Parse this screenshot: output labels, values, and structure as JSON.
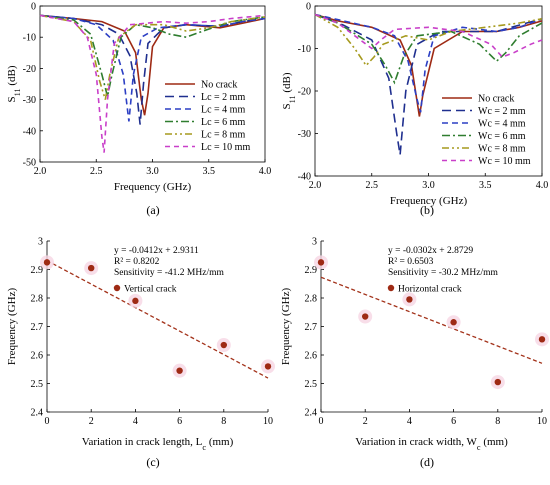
{
  "chart_data": [
    {
      "panel": "(a)",
      "type": "line",
      "xlabel": "Frequency (GHz)",
      "ylabel": "S11 (dB)",
      "ylabel_main": "S",
      "ylabel_sub": "11",
      "ylabel_unit": " (dB)",
      "xlim": [
        2.0,
        4.0
      ],
      "ylim": [
        -50,
        0
      ],
      "xticks": [
        "2.0",
        "2.5",
        "3.0",
        "3.5",
        "4.0"
      ],
      "yticks": [
        "0",
        "-10",
        "-20",
        "-30",
        "-40",
        "-50"
      ],
      "legend_position": "bottom-right",
      "series": [
        {
          "name": "No crack",
          "color": "#9e2a14",
          "dash": "solid",
          "points": [
            [
              2.0,
              -3
            ],
            [
              2.3,
              -4
            ],
            [
              2.55,
              -5
            ],
            [
              2.75,
              -8
            ],
            [
              2.85,
              -15
            ],
            [
              2.9,
              -30
            ],
            [
              2.93,
              -35
            ],
            [
              2.96,
              -28
            ],
            [
              3.0,
              -13
            ],
            [
              3.1,
              -7
            ],
            [
              3.3,
              -6
            ],
            [
              3.6,
              -7
            ],
            [
              3.8,
              -5.5
            ],
            [
              4.0,
              -4
            ]
          ]
        },
        {
          "name": "Lc = 2 mm",
          "color": "#1f2f8f",
          "dash": "9 5",
          "points": [
            [
              2.0,
              -3
            ],
            [
              2.3,
              -4
            ],
            [
              2.55,
              -6
            ],
            [
              2.7,
              -9
            ],
            [
              2.8,
              -16
            ],
            [
              2.86,
              -28
            ],
            [
              2.89,
              -38
            ],
            [
              2.92,
              -25
            ],
            [
              2.96,
              -12
            ],
            [
              3.1,
              -7
            ],
            [
              3.3,
              -6
            ],
            [
              3.6,
              -6.5
            ],
            [
              3.8,
              -5
            ],
            [
              4.0,
              -4
            ]
          ]
        },
        {
          "name": "Lc = 4 mm",
          "color": "#2c3fc4",
          "dash": "6 4",
          "points": [
            [
              2.0,
              -3
            ],
            [
              2.3,
              -4
            ],
            [
              2.5,
              -6
            ],
            [
              2.65,
              -11
            ],
            [
              2.74,
              -22
            ],
            [
              2.79,
              -37
            ],
            [
              2.83,
              -22
            ],
            [
              2.9,
              -10
            ],
            [
              3.05,
              -7
            ],
            [
              3.3,
              -6
            ],
            [
              3.6,
              -6.5
            ],
            [
              3.8,
              -5
            ],
            [
              4.0,
              -4
            ]
          ]
        },
        {
          "name": "Lc = 6 mm",
          "color": "#2f7d2f",
          "dash": "8 3 2 3",
          "points": [
            [
              2.0,
              -3
            ],
            [
              2.3,
              -4.5
            ],
            [
              2.45,
              -9
            ],
            [
              2.55,
              -22
            ],
            [
              2.6,
              -29
            ],
            [
              2.64,
              -22
            ],
            [
              2.72,
              -10
            ],
            [
              2.85,
              -6
            ],
            [
              3.0,
              -7
            ],
            [
              3.15,
              -9
            ],
            [
              3.3,
              -10
            ],
            [
              3.45,
              -8
            ],
            [
              3.7,
              -5
            ],
            [
              4.0,
              -3.5
            ]
          ]
        },
        {
          "name": "Lc = 8 mm",
          "color": "#a69a1e",
          "dash": "7 3 2 3 2 3",
          "points": [
            [
              2.0,
              -3
            ],
            [
              2.3,
              -5
            ],
            [
              2.45,
              -11
            ],
            [
              2.53,
              -24
            ],
            [
              2.58,
              -30
            ],
            [
              2.62,
              -22
            ],
            [
              2.7,
              -10
            ],
            [
              2.85,
              -6
            ],
            [
              3.1,
              -6
            ],
            [
              3.3,
              -8
            ],
            [
              3.5,
              -7
            ],
            [
              3.7,
              -5
            ],
            [
              4.0,
              -3.5
            ]
          ]
        },
        {
          "name": "Lc = 10 mm",
          "color": "#c93fc9",
          "dash": "5 4",
          "points": [
            [
              2.0,
              -3
            ],
            [
              2.3,
              -5
            ],
            [
              2.42,
              -10
            ],
            [
              2.5,
              -22
            ],
            [
              2.55,
              -42
            ],
            [
              2.57,
              -47
            ],
            [
              2.6,
              -30
            ],
            [
              2.66,
              -12
            ],
            [
              2.8,
              -6
            ],
            [
              3.1,
              -5
            ],
            [
              3.3,
              -5.5
            ],
            [
              3.5,
              -5
            ],
            [
              3.7,
              -4
            ],
            [
              4.0,
              -3
            ]
          ]
        }
      ]
    },
    {
      "panel": "(b)",
      "type": "line",
      "xlabel": "Frequency (GHz)",
      "ylabel": "S11 (dB)",
      "ylabel_main": "S",
      "ylabel_sub": "11",
      "ylabel_unit": " (dB)",
      "xlim": [
        2.0,
        4.0
      ],
      "ylim": [
        -40,
        0
      ],
      "xticks": [
        "2.0",
        "2.5",
        "3.0",
        "3.5",
        "4.0"
      ],
      "yticks": [
        "0",
        "-10",
        "-20",
        "-30",
        "-40"
      ],
      "legend_position": "bottom-right",
      "series": [
        {
          "name": "No crack",
          "color": "#9e2a14",
          "dash": "solid",
          "points": [
            [
              2.0,
              -2
            ],
            [
              2.2,
              -3.5
            ],
            [
              2.5,
              -5
            ],
            [
              2.75,
              -8
            ],
            [
              2.85,
              -14
            ],
            [
              2.92,
              -26
            ],
            [
              2.95,
              -21
            ],
            [
              3.05,
              -10
            ],
            [
              3.3,
              -6
            ],
            [
              3.6,
              -6
            ],
            [
              3.8,
              -5
            ],
            [
              4.0,
              -3.5
            ]
          ]
        },
        {
          "name": "Wc = 2 mm",
          "color": "#1f2f8f",
          "dash": "9 5",
          "points": [
            [
              2.0,
              -2
            ],
            [
              2.25,
              -4.5
            ],
            [
              2.5,
              -8
            ],
            [
              2.65,
              -17
            ],
            [
              2.72,
              -30
            ],
            [
              2.75,
              -35
            ],
            [
              2.8,
              -20
            ],
            [
              2.9,
              -9
            ],
            [
              3.1,
              -6
            ],
            [
              3.4,
              -6
            ],
            [
              3.6,
              -6
            ],
            [
              3.8,
              -4.5
            ],
            [
              4.0,
              -3
            ]
          ]
        },
        {
          "name": "Wc = 4 mm",
          "color": "#2c3fc4",
          "dash": "6 4",
          "points": [
            [
              2.0,
              -2
            ],
            [
              2.25,
              -3.5
            ],
            [
              2.5,
              -5
            ],
            [
              2.7,
              -7
            ],
            [
              2.82,
              -13
            ],
            [
              2.9,
              -22
            ],
            [
              2.93,
              -25
            ],
            [
              2.97,
              -15
            ],
            [
              3.05,
              -7
            ],
            [
              3.3,
              -5
            ],
            [
              3.6,
              -6
            ],
            [
              3.8,
              -5
            ],
            [
              4.0,
              -3
            ]
          ]
        },
        {
          "name": "Wc = 6 mm",
          "color": "#2f7d2f",
          "dash": "8 3 2 3",
          "points": [
            [
              2.0,
              -2
            ],
            [
              2.2,
              -4
            ],
            [
              2.5,
              -9
            ],
            [
              2.62,
              -14
            ],
            [
              2.7,
              -18
            ],
            [
              2.78,
              -12
            ],
            [
              2.9,
              -7
            ],
            [
              3.2,
              -6
            ],
            [
              3.45,
              -9
            ],
            [
              3.6,
              -13
            ],
            [
              3.68,
              -11
            ],
            [
              3.8,
              -7
            ],
            [
              4.0,
              -4
            ]
          ]
        },
        {
          "name": "Wc = 8 mm",
          "color": "#a69a1e",
          "dash": "7 3 2 3 2 3",
          "points": [
            [
              2.0,
              -2
            ],
            [
              2.2,
              -5
            ],
            [
              2.35,
              -10
            ],
            [
              2.45,
              -14
            ],
            [
              2.52,
              -12
            ],
            [
              2.6,
              -9
            ],
            [
              2.8,
              -7
            ],
            [
              3.0,
              -8
            ],
            [
              3.2,
              -6
            ],
            [
              3.5,
              -5
            ],
            [
              3.8,
              -4
            ],
            [
              4.0,
              -3
            ]
          ]
        },
        {
          "name": "Wc = 10 mm",
          "color": "#c93fc9",
          "dash": "5 4",
          "points": [
            [
              2.0,
              -2
            ],
            [
              2.2,
              -4
            ],
            [
              2.4,
              -8
            ],
            [
              2.5,
              -10
            ],
            [
              2.58,
              -8
            ],
            [
              2.7,
              -5.5
            ],
            [
              3.0,
              -5
            ],
            [
              3.3,
              -6
            ],
            [
              3.55,
              -9
            ],
            [
              3.65,
              -12
            ],
            [
              3.75,
              -11
            ],
            [
              3.9,
              -9
            ],
            [
              4.0,
              -8
            ]
          ]
        }
      ]
    },
    {
      "panel": "(c)",
      "type": "scatter",
      "xlabel": "Variation in crack length, Lc (mm)",
      "xlabel_main": "Variation in crack length, L",
      "xlabel_sub": "c",
      "xlabel_unit": " (mm)",
      "ylabel": "Frequency (GHz)",
      "xlim": [
        0,
        10
      ],
      "ylim": [
        2.4,
        3.0
      ],
      "xticks": [
        "0",
        "2",
        "4",
        "6",
        "8",
        "10"
      ],
      "yticks": [
        "2.4",
        "2.5",
        "2.6",
        "2.7",
        "2.8",
        "2.9",
        "3"
      ],
      "legend_position": "top-right",
      "series_name": "Vertical crack",
      "marker_color": "#9e2a14",
      "points": [
        [
          0,
          2.925
        ],
        [
          2,
          2.905
        ],
        [
          4,
          2.79
        ],
        [
          6,
          2.545
        ],
        [
          8,
          2.635
        ],
        [
          10,
          2.56
        ]
      ],
      "trendline": {
        "slope": -0.0412,
        "intercept": 2.9311,
        "color": "#a3321a"
      },
      "annotations": [
        "y = -0.0412x + 2.9311",
        "R² = 0.8202",
        "Sensitivity = -41.2 MHz/mm"
      ]
    },
    {
      "panel": "(d)",
      "type": "scatter",
      "xlabel": "Variation in crack width, Wc (mm)",
      "xlabel_main": "Variation in crack width, W",
      "xlabel_sub": "c",
      "xlabel_unit": " (mm)",
      "ylabel": "Frequency (GHz)",
      "xlim": [
        0,
        10
      ],
      "ylim": [
        2.4,
        3.0
      ],
      "xticks": [
        "0",
        "2",
        "4",
        "6",
        "8",
        "10"
      ],
      "yticks": [
        "2.4",
        "2.5",
        "2.6",
        "2.7",
        "2.8",
        "2.9",
        "3"
      ],
      "legend_position": "top-right",
      "series_name": "Horizontal crack",
      "marker_color": "#9e2a14",
      "points": [
        [
          0,
          2.925
        ],
        [
          2,
          2.735
        ],
        [
          4,
          2.795
        ],
        [
          6,
          2.715
        ],
        [
          8,
          2.505
        ],
        [
          10,
          2.655
        ]
      ],
      "trendline": {
        "slope": -0.0302,
        "intercept": 2.8729,
        "color": "#a3321a"
      },
      "annotations": [
        "y = -0.0302x + 2.8729",
        "R² = 0.6503",
        "Sensitivity = -30.2 MHz/mm"
      ]
    }
  ]
}
